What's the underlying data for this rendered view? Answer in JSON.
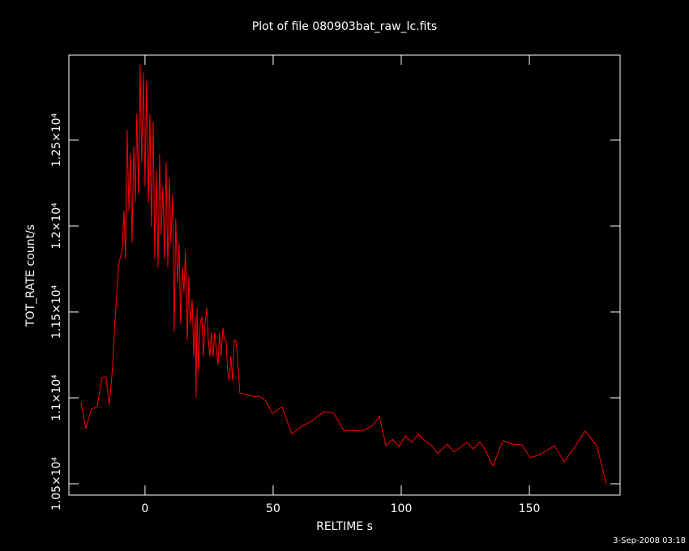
{
  "chart_data": {
    "type": "line",
    "title": "Plot of file 080903bat_raw_lc.fits",
    "x_label": "RELTIME  s",
    "y_label": "TOT_RATE  count/s",
    "footer": "3-Sep-2008 03:18",
    "color": "#ff0000",
    "xlim": [
      -29.7,
      185.4
    ],
    "ylim": [
      10434,
      12995
    ],
    "xticks": [
      0,
      50,
      100,
      150
    ],
    "yticks": [
      {
        "value": 10500,
        "label": "1.05×10⁴"
      },
      {
        "value": 11000,
        "label": "1.1×10⁴"
      },
      {
        "value": 11500,
        "label": "1.15×10⁴"
      },
      {
        "value": 12000,
        "label": "1.2×10⁴"
      },
      {
        "value": 12500,
        "label": "1.25×10⁴"
      }
    ],
    "x": [
      -25.0,
      -23.1,
      -20.9,
      -18.7,
      -16.8,
      -15.2,
      -13.9,
      -12.7,
      -12.0,
      -11.4,
      -10.4,
      -9.5,
      -8.9,
      -8.2,
      -7.6,
      -7.0,
      -6.3,
      -5.7,
      -5.1,
      -4.4,
      -3.8,
      -3.2,
      -2.5,
      -1.9,
      -1.3,
      -0.6,
      0,
      0.6,
      1.3,
      1.9,
      2.5,
      3.2,
      3.8,
      4.4,
      5.1,
      5.7,
      6.3,
      7.0,
      7.6,
      8.2,
      8.9,
      9.5,
      10.1,
      10.8,
      11.4,
      12.0,
      12.7,
      13.3,
      13.9,
      14.6,
      15.2,
      15.8,
      16.5,
      17.1,
      17.7,
      18.4,
      19.0,
      19.6,
      19.9,
      20.3,
      20.9,
      21.5,
      22.2,
      22.8,
      23.4,
      24.1,
      24.7,
      25.3,
      25.9,
      26.6,
      27.2,
      27.8,
      28.5,
      29.1,
      29.7,
      30.4,
      31.0,
      31.6,
      32.3,
      32.9,
      33.5,
      34.2,
      34.8,
      35.4,
      36.1,
      37.0,
      39.6,
      42.1,
      44.6,
      47.2,
      49.7,
      53.5,
      57.3,
      59.8,
      62.3,
      64.9,
      67.4,
      69.9,
      73.7,
      77.5,
      81.3,
      85.1,
      88.9,
      91.5,
      94.0,
      96.5,
      99.1,
      101.6,
      104.1,
      106.6,
      109.2,
      111.7,
      114.2,
      118.0,
      120.6,
      123.1,
      125.6,
      128.2,
      130.7,
      133.2,
      135.8,
      139.6,
      143.4,
      147.2,
      150.3,
      154.1,
      159.8,
      163.6,
      167.4,
      171.8,
      176.3,
      180.1
    ],
    "values": [
      10976,
      10821,
      10934,
      10948,
      11118,
      11123,
      10958,
      11170,
      11382,
      11524,
      11759,
      11830,
      11854,
      12090,
      11807,
      12561,
      12090,
      12420,
      11901,
      12467,
      12137,
      12656,
      12184,
      12939,
      12373,
      12892,
      12231,
      12844,
      12137,
      12656,
      11995,
      12608,
      11807,
      12325,
      11759,
      12420,
      11948,
      12231,
      11807,
      12373,
      11759,
      12278,
      11901,
      12184,
      11382,
      12042,
      11665,
      11901,
      11429,
      11759,
      11618,
      11854,
      11335,
      11712,
      11429,
      11571,
      11241,
      11476,
      11005,
      11524,
      11146,
      11429,
      11476,
      11241,
      11429,
      11524,
      11335,
      11241,
      11382,
      11241,
      11382,
      11288,
      11193,
      11382,
      11241,
      11406,
      11335,
      11335,
      11146,
      11099,
      11241,
      11099,
      11335,
      11335,
      11241,
      11028,
      11019,
      11009,
      11009,
      10981,
      10910,
      10948,
      10788,
      10821,
      10844,
      10863,
      10892,
      10920,
      10910,
      10811,
      10811,
      10807,
      10840,
      10892,
      10722,
      10759,
      10717,
      10778,
      10741,
      10788,
      10750,
      10726,
      10675,
      10731,
      10684,
      10712,
      10741,
      10703,
      10745,
      10684,
      10604,
      10750,
      10731,
      10726,
      10651,
      10670,
      10722,
      10627,
      10708,
      10807,
      10722,
      10495
    ]
  }
}
